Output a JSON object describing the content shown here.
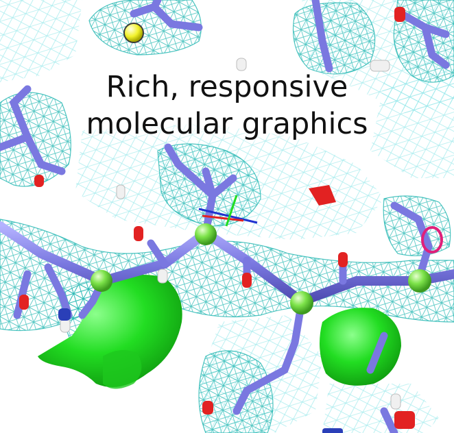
{
  "headline": {
    "line1": "Rich, responsive",
    "line2": "molecular graphics"
  },
  "colors": {
    "background": "#ffffff",
    "mesh": "#1fb5b0",
    "mesh_light": "#7fe3e6",
    "bonds": "#7a78e0",
    "alpha_carbon": "#7de34a",
    "density_blob": "#22dd22",
    "oxygen": "#e22222",
    "sulfur": "#f2f22c",
    "hydrogen": "#f0f0f0",
    "nitrogen": "#2a3fb8",
    "ring": "#e0207a"
  },
  "icons": [
    "molecular-structure-render"
  ]
}
